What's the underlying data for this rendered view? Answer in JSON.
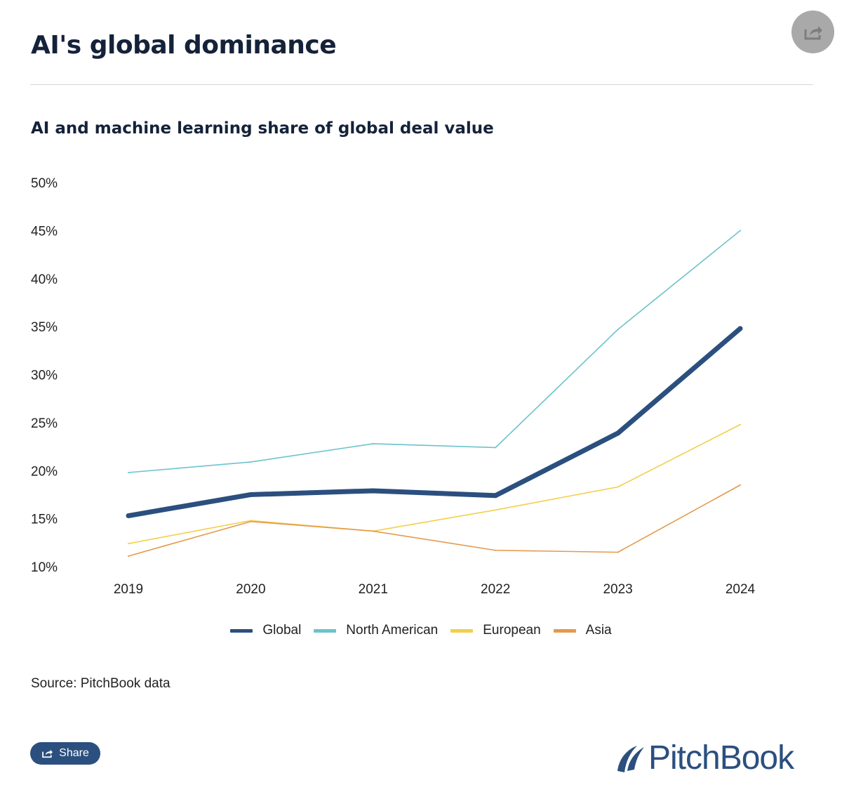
{
  "header": {
    "title": "AI's global dominance",
    "share_icon": "share-icon"
  },
  "chart_data": {
    "type": "line",
    "title": "AI and machine learning share of global deal value",
    "xlabel": "",
    "ylabel": "",
    "x": [
      "2019",
      "2020",
      "2021",
      "2022",
      "2023",
      "2024"
    ],
    "ylim": [
      10,
      50
    ],
    "yticks": [
      "10%",
      "15%",
      "20%",
      "25%",
      "30%",
      "35%",
      "40%",
      "45%",
      "50%"
    ],
    "yticks_values": [
      10,
      15,
      20,
      25,
      30,
      35,
      40,
      45,
      50
    ],
    "grid": false,
    "legend_position": "bottom",
    "series": [
      {
        "name": "Global",
        "color": "#2b4f7e",
        "values": [
          15.3,
          17.5,
          17.9,
          17.4,
          23.9,
          34.8
        ]
      },
      {
        "name": "North American",
        "color": "#6cc3cc",
        "values": [
          19.8,
          20.9,
          22.8,
          22.4,
          34.7,
          45.0
        ]
      },
      {
        "name": "European",
        "color": "#f2cf4a",
        "values": [
          12.4,
          14.8,
          13.7,
          15.9,
          18.3,
          24.8
        ]
      },
      {
        "name": "Asia",
        "color": "#e39a4d",
        "values": [
          11.1,
          14.7,
          13.7,
          11.7,
          11.5,
          18.5
        ]
      }
    ]
  },
  "footer": {
    "source": "Source: PitchBook data",
    "share_label": "Share",
    "logo_text": "PitchBook"
  }
}
